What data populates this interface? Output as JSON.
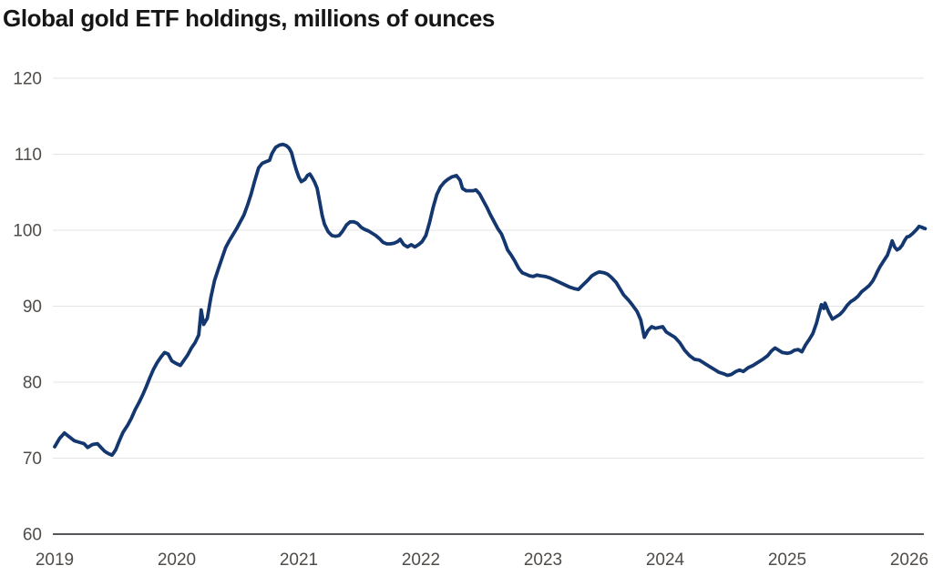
{
  "title": "Global gold ETF holdings, millions of ounces",
  "colors": {
    "line": "#13376e",
    "grid": "#e4e4e4",
    "axis_line": "#55565a",
    "tick_label": "#4f4c49",
    "title_text": "#161616"
  },
  "chart_data": {
    "type": "line",
    "title": "Global gold ETF holdings, millions of ounces",
    "xlabel": "",
    "ylabel": "millions of ounces",
    "x_ticks": [
      2019,
      2020,
      2021,
      2022,
      2023,
      2024,
      2025,
      2026
    ],
    "y_ticks": [
      60,
      70,
      80,
      90,
      100,
      110,
      120
    ],
    "xlim": [
      2019,
      2026.15
    ],
    "ylim": [
      60,
      120
    ],
    "grid": "horizontal-only",
    "legend": "none",
    "series": [
      {
        "name": "Global gold ETF holdings (millions of ounces)",
        "points": [
          [
            2019.0,
            71.5
          ],
          [
            2019.04,
            72.6
          ],
          [
            2019.08,
            73.3
          ],
          [
            2019.12,
            72.8
          ],
          [
            2019.16,
            72.3
          ],
          [
            2019.2,
            72.1
          ],
          [
            2019.24,
            71.9
          ],
          [
            2019.27,
            71.4
          ],
          [
            2019.31,
            71.8
          ],
          [
            2019.35,
            71.9
          ],
          [
            2019.38,
            71.4
          ],
          [
            2019.41,
            70.9
          ],
          [
            2019.44,
            70.6
          ],
          [
            2019.47,
            70.4
          ],
          [
            2019.5,
            71.1
          ],
          [
            2019.53,
            72.3
          ],
          [
            2019.56,
            73.4
          ],
          [
            2019.6,
            74.4
          ],
          [
            2019.63,
            75.3
          ],
          [
            2019.66,
            76.4
          ],
          [
            2019.69,
            77.3
          ],
          [
            2019.72,
            78.3
          ],
          [
            2019.75,
            79.4
          ],
          [
            2019.78,
            80.6
          ],
          [
            2019.81,
            81.7
          ],
          [
            2019.84,
            82.6
          ],
          [
            2019.87,
            83.3
          ],
          [
            2019.9,
            83.9
          ],
          [
            2019.93,
            83.7
          ],
          [
            2019.96,
            82.8
          ],
          [
            2019.99,
            82.5
          ],
          [
            2020.03,
            82.2
          ],
          [
            2020.06,
            82.9
          ],
          [
            2020.09,
            83.6
          ],
          [
            2020.12,
            84.5
          ],
          [
            2020.15,
            85.2
          ],
          [
            2020.18,
            86.2
          ],
          [
            2020.2,
            89.5
          ],
          [
            2020.22,
            87.6
          ],
          [
            2020.25,
            88.4
          ],
          [
            2020.28,
            91.2
          ],
          [
            2020.31,
            93.4
          ],
          [
            2020.34,
            94.9
          ],
          [
            2020.37,
            96.3
          ],
          [
            2020.4,
            97.7
          ],
          [
            2020.43,
            98.6
          ],
          [
            2020.46,
            99.4
          ],
          [
            2020.49,
            100.2
          ],
          [
            2020.52,
            101.1
          ],
          [
            2020.55,
            102.0
          ],
          [
            2020.58,
            103.3
          ],
          [
            2020.61,
            104.8
          ],
          [
            2020.64,
            106.6
          ],
          [
            2020.67,
            108.2
          ],
          [
            2020.7,
            108.8
          ],
          [
            2020.73,
            109.0
          ],
          [
            2020.76,
            109.2
          ],
          [
            2020.78,
            110.1
          ],
          [
            2020.81,
            110.9
          ],
          [
            2020.84,
            111.2
          ],
          [
            2020.87,
            111.3
          ],
          [
            2020.9,
            111.1
          ],
          [
            2020.92,
            110.8
          ],
          [
            2020.94,
            110.2
          ],
          [
            2020.96,
            109.0
          ],
          [
            2020.98,
            107.9
          ],
          [
            2021.0,
            107.0
          ],
          [
            2021.02,
            106.4
          ],
          [
            2021.05,
            106.7
          ],
          [
            2021.07,
            107.2
          ],
          [
            2021.09,
            107.4
          ],
          [
            2021.11,
            106.9
          ],
          [
            2021.13,
            106.3
          ],
          [
            2021.15,
            105.5
          ],
          [
            2021.17,
            103.8
          ],
          [
            2021.19,
            102.0
          ],
          [
            2021.21,
            100.8
          ],
          [
            2021.24,
            99.8
          ],
          [
            2021.27,
            99.3
          ],
          [
            2021.3,
            99.2
          ],
          [
            2021.33,
            99.3
          ],
          [
            2021.36,
            99.9
          ],
          [
            2021.39,
            100.7
          ],
          [
            2021.42,
            101.1
          ],
          [
            2021.45,
            101.1
          ],
          [
            2021.48,
            100.9
          ],
          [
            2021.51,
            100.4
          ],
          [
            2021.54,
            100.1
          ],
          [
            2021.57,
            99.9
          ],
          [
            2021.6,
            99.6
          ],
          [
            2021.63,
            99.3
          ],
          [
            2021.66,
            98.9
          ],
          [
            2021.69,
            98.4
          ],
          [
            2021.72,
            98.2
          ],
          [
            2021.75,
            98.2
          ],
          [
            2021.78,
            98.3
          ],
          [
            2021.81,
            98.5
          ],
          [
            2021.83,
            98.8
          ],
          [
            2021.86,
            98.1
          ],
          [
            2021.89,
            97.8
          ],
          [
            2021.92,
            98.1
          ],
          [
            2021.95,
            97.8
          ],
          [
            2021.98,
            98.1
          ],
          [
            2022.01,
            98.5
          ],
          [
            2022.04,
            99.3
          ],
          [
            2022.07,
            101.0
          ],
          [
            2022.1,
            103.0
          ],
          [
            2022.13,
            104.7
          ],
          [
            2022.16,
            105.7
          ],
          [
            2022.19,
            106.3
          ],
          [
            2022.22,
            106.7
          ],
          [
            2022.25,
            107.0
          ],
          [
            2022.29,
            107.2
          ],
          [
            2022.32,
            106.6
          ],
          [
            2022.34,
            105.5
          ],
          [
            2022.37,
            105.2
          ],
          [
            2022.4,
            105.2
          ],
          [
            2022.43,
            105.2
          ],
          [
            2022.45,
            105.3
          ],
          [
            2022.48,
            104.8
          ],
          [
            2022.51,
            103.9
          ],
          [
            2022.54,
            103.0
          ],
          [
            2022.57,
            102.0
          ],
          [
            2022.6,
            101.1
          ],
          [
            2022.63,
            100.2
          ],
          [
            2022.66,
            99.5
          ],
          [
            2022.68,
            98.7
          ],
          [
            2022.71,
            97.4
          ],
          [
            2022.74,
            96.7
          ],
          [
            2022.77,
            95.9
          ],
          [
            2022.8,
            95.0
          ],
          [
            2022.83,
            94.4
          ],
          [
            2022.86,
            94.2
          ],
          [
            2022.89,
            94.0
          ],
          [
            2022.92,
            93.9
          ],
          [
            2022.95,
            94.1
          ],
          [
            2022.98,
            94.0
          ],
          [
            2023.02,
            93.9
          ],
          [
            2023.06,
            93.7
          ],
          [
            2023.1,
            93.4
          ],
          [
            2023.14,
            93.1
          ],
          [
            2023.18,
            92.8
          ],
          [
            2023.22,
            92.5
          ],
          [
            2023.26,
            92.3
          ],
          [
            2023.29,
            92.2
          ],
          [
            2023.32,
            92.7
          ],
          [
            2023.36,
            93.3
          ],
          [
            2023.4,
            94.0
          ],
          [
            2023.43,
            94.3
          ],
          [
            2023.46,
            94.5
          ],
          [
            2023.5,
            94.4
          ],
          [
            2023.53,
            94.2
          ],
          [
            2023.56,
            93.8
          ],
          [
            2023.6,
            93.1
          ],
          [
            2023.63,
            92.3
          ],
          [
            2023.66,
            91.5
          ],
          [
            2023.7,
            90.8
          ],
          [
            2023.73,
            90.2
          ],
          [
            2023.77,
            89.3
          ],
          [
            2023.8,
            88.2
          ],
          [
            2023.83,
            85.9
          ],
          [
            2023.86,
            86.8
          ],
          [
            2023.89,
            87.3
          ],
          [
            2023.92,
            87.1
          ],
          [
            2023.95,
            87.2
          ],
          [
            2023.98,
            87.3
          ],
          [
            2024.01,
            86.6
          ],
          [
            2024.05,
            86.2
          ],
          [
            2024.08,
            85.9
          ],
          [
            2024.12,
            85.2
          ],
          [
            2024.16,
            84.2
          ],
          [
            2024.2,
            83.5
          ],
          [
            2024.24,
            83.0
          ],
          [
            2024.28,
            82.9
          ],
          [
            2024.32,
            82.5
          ],
          [
            2024.36,
            82.1
          ],
          [
            2024.4,
            81.7
          ],
          [
            2024.44,
            81.3
          ],
          [
            2024.48,
            81.1
          ],
          [
            2024.51,
            80.9
          ],
          [
            2024.54,
            81.0
          ],
          [
            2024.58,
            81.4
          ],
          [
            2024.61,
            81.6
          ],
          [
            2024.64,
            81.4
          ],
          [
            2024.68,
            81.9
          ],
          [
            2024.72,
            82.2
          ],
          [
            2024.76,
            82.6
          ],
          [
            2024.8,
            83.0
          ],
          [
            2024.84,
            83.5
          ],
          [
            2024.87,
            84.1
          ],
          [
            2024.9,
            84.5
          ],
          [
            2024.93,
            84.2
          ],
          [
            2024.96,
            83.9
          ],
          [
            2025.0,
            83.8
          ],
          [
            2025.03,
            83.9
          ],
          [
            2025.06,
            84.2
          ],
          [
            2025.09,
            84.3
          ],
          [
            2025.12,
            84.0
          ],
          [
            2025.15,
            84.9
          ],
          [
            2025.18,
            85.6
          ],
          [
            2025.21,
            86.4
          ],
          [
            2025.24,
            87.8
          ],
          [
            2025.26,
            89.0
          ],
          [
            2025.28,
            90.2
          ],
          [
            2025.3,
            89.7
          ],
          [
            2025.31,
            90.4
          ],
          [
            2025.34,
            89.2
          ],
          [
            2025.37,
            88.3
          ],
          [
            2025.4,
            88.6
          ],
          [
            2025.43,
            88.9
          ],
          [
            2025.46,
            89.4
          ],
          [
            2025.49,
            90.1
          ],
          [
            2025.52,
            90.6
          ],
          [
            2025.55,
            90.9
          ],
          [
            2025.58,
            91.3
          ],
          [
            2025.61,
            91.9
          ],
          [
            2025.64,
            92.3
          ],
          [
            2025.67,
            92.7
          ],
          [
            2025.7,
            93.3
          ],
          [
            2025.72,
            93.9
          ],
          [
            2025.74,
            94.6
          ],
          [
            2025.76,
            95.2
          ],
          [
            2025.78,
            95.7
          ],
          [
            2025.8,
            96.2
          ],
          [
            2025.82,
            96.7
          ],
          [
            2025.84,
            97.6
          ],
          [
            2025.86,
            98.6
          ],
          [
            2025.88,
            97.8
          ],
          [
            2025.9,
            97.4
          ],
          [
            2025.92,
            97.6
          ],
          [
            2025.94,
            98.0
          ],
          [
            2025.96,
            98.6
          ],
          [
            2025.98,
            99.1
          ],
          [
            2026.0,
            99.2
          ],
          [
            2026.03,
            99.6
          ],
          [
            2026.06,
            100.1
          ],
          [
            2026.08,
            100.5
          ],
          [
            2026.1,
            100.4
          ],
          [
            2026.13,
            100.2
          ]
        ]
      }
    ]
  }
}
